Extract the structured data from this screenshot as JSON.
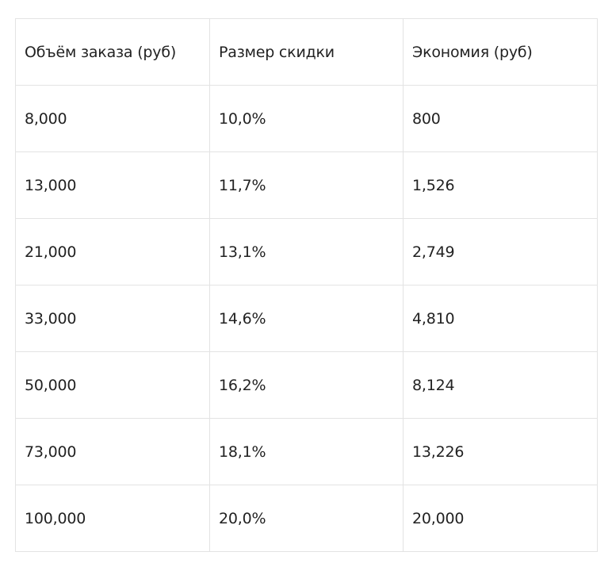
{
  "table": {
    "headers": [
      "Объём заказа (руб)",
      "Размер скидки",
      "Экономия (руб)"
    ],
    "rows": [
      [
        "8,000",
        "10,0%",
        "800"
      ],
      [
        "13,000",
        "11,7%",
        "1,526"
      ],
      [
        "21,000",
        "13,1%",
        "2,749"
      ],
      [
        "33,000",
        "14,6%",
        "4,810"
      ],
      [
        "50,000",
        "16,2%",
        "8,124"
      ],
      [
        "73,000",
        "18,1%",
        "13,226"
      ],
      [
        "100,000",
        "20,0%",
        "20,000"
      ]
    ],
    "border_color": "#e3e3e3",
    "text_color": "#222222"
  }
}
